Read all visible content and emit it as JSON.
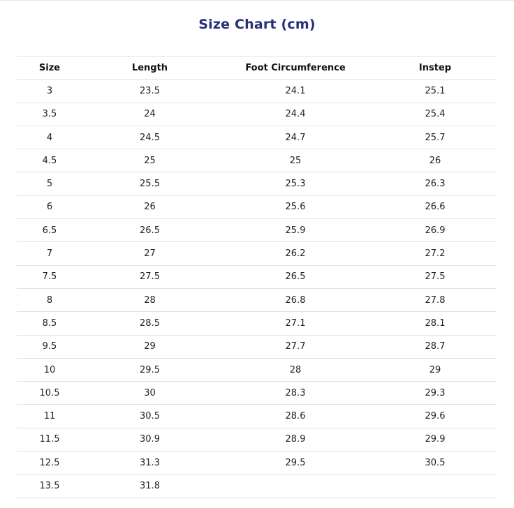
{
  "title": "Size Chart (cm)",
  "columns": [
    "Size",
    "Length",
    "Foot Circumference",
    "Instep"
  ],
  "rows": [
    [
      "3",
      "23.5",
      "24.1",
      "25.1"
    ],
    [
      "3.5",
      "24",
      "24.4",
      "25.4"
    ],
    [
      "4",
      "24.5",
      "24.7",
      "25.7"
    ],
    [
      "4.5",
      "25",
      "25",
      "26"
    ],
    [
      "5",
      "25.5",
      "25.3",
      "26.3"
    ],
    [
      "6",
      "26",
      "25.6",
      "26.6"
    ],
    [
      "6.5",
      "26.5",
      "25.9",
      "26.9"
    ],
    [
      "7",
      "27",
      "26.2",
      "27.2"
    ],
    [
      "7.5",
      "27.5",
      "26.5",
      "27.5"
    ],
    [
      "8",
      "28",
      "26.8",
      "27.8"
    ],
    [
      "8.5",
      "28.5",
      "27.1",
      "28.1"
    ],
    [
      "9.5",
      "29",
      "27.7",
      "28.7"
    ],
    [
      "10",
      "29.5",
      "28",
      "29"
    ],
    [
      "10.5",
      "30",
      "28.3",
      "29.3"
    ],
    [
      "11",
      "30.5",
      "28.6",
      "29.6"
    ],
    [
      "11.5",
      "30.9",
      "28.9",
      "29.9"
    ],
    [
      "12.5",
      "31.3",
      "29.5",
      "30.5"
    ],
    [
      "13.5",
      "31.8",
      "",
      ""
    ]
  ]
}
